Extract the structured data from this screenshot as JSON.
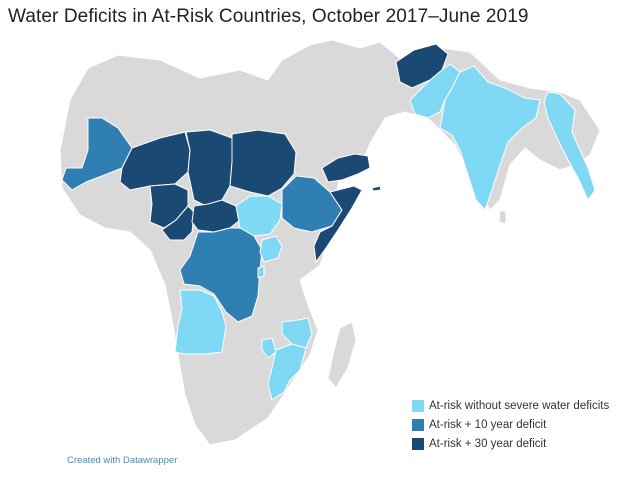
{
  "title": "Water Deficits in At-Risk Countries, October 2017–June 2019",
  "credit": "Created with Datawrapper",
  "colors": {
    "background_land": "#d9d9d9",
    "border": "#ffffff",
    "at_risk": "#7fd9f5",
    "deficit_10": "#2f7fb3",
    "deficit_30": "#1a4a73"
  },
  "legend": [
    {
      "label": "At-risk without severe water deficits",
      "color": "#7fd9f5"
    },
    {
      "label": "At-risk + 10 year deficit",
      "color": "#2f7fb3"
    },
    {
      "label": "At-risk + 30 year deficit",
      "color": "#1a4a73"
    }
  ]
}
